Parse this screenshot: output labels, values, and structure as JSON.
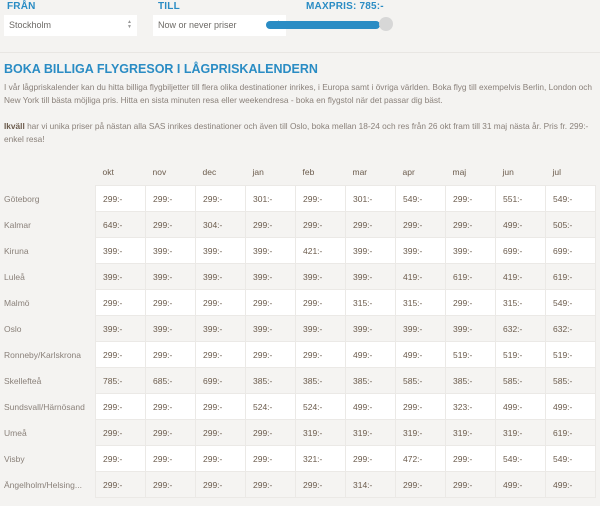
{
  "filters": {
    "from_label": "FRÅN",
    "from_value": "Stockholm",
    "to_label": "TILL",
    "to_value": "Now or never priser",
    "maxprice_label": "MAXPRIS: 785:-",
    "maxprice_fraction": 1.0,
    "accent": "#2a8cc4"
  },
  "heading": "BOKA BILLIGA FLYGRESOR I LÅGPRISKALENDERN",
  "intro": "I vår lågpriskalender kan du hitta billiga flygbiljetter till flera olika destinationer inrikes, i Europa samt i övriga världen. Boka flyg till exempelvis Berlin, London och New York till bästa möjliga pris. Hitta en sista minuten resa eller weekendresa - boka en flygstol när det passar dig bäst.",
  "offer_bold": "Ikväll",
  "offer_text": " har vi unika priser på nästan alla SAS inrikes destinationer och även till Oslo, boka mellan 18-24 och res från 26 okt fram till 31 maj nästa år. Pris fr. 299:- enkel resa!",
  "table": {
    "months": [
      "okt",
      "nov",
      "dec",
      "jan",
      "feb",
      "mar",
      "apr",
      "maj",
      "jun",
      "jul"
    ],
    "rows": [
      {
        "city": "Göteborg",
        "prices": [
          "299:-",
          "299:-",
          "299:-",
          "301:-",
          "299:-",
          "301:-",
          "549:-",
          "299:-",
          "551:-",
          "549:-"
        ]
      },
      {
        "city": "Kalmar",
        "prices": [
          "649:-",
          "299:-",
          "304:-",
          "299:-",
          "299:-",
          "299:-",
          "299:-",
          "299:-",
          "499:-",
          "505:-"
        ]
      },
      {
        "city": "Kiruna",
        "prices": [
          "399:-",
          "399:-",
          "399:-",
          "399:-",
          "421:-",
          "399:-",
          "399:-",
          "399:-",
          "699:-",
          "699:-"
        ]
      },
      {
        "city": "Luleå",
        "prices": [
          "399:-",
          "399:-",
          "399:-",
          "399:-",
          "399:-",
          "399:-",
          "419:-",
          "619:-",
          "419:-",
          "619:-"
        ]
      },
      {
        "city": "Malmö",
        "prices": [
          "299:-",
          "299:-",
          "299:-",
          "299:-",
          "299:-",
          "315:-",
          "315:-",
          "299:-",
          "315:-",
          "549:-"
        ]
      },
      {
        "city": "Oslo",
        "prices": [
          "399:-",
          "399:-",
          "399:-",
          "399:-",
          "399:-",
          "399:-",
          "399:-",
          "399:-",
          "632:-",
          "632:-"
        ]
      },
      {
        "city": "Ronneby/Karlskrona",
        "prices": [
          "299:-",
          "299:-",
          "299:-",
          "299:-",
          "299:-",
          "499:-",
          "499:-",
          "519:-",
          "519:-",
          "519:-"
        ]
      },
      {
        "city": "Skellefteå",
        "prices": [
          "785:-",
          "685:-",
          "699:-",
          "385:-",
          "385:-",
          "385:-",
          "585:-",
          "385:-",
          "585:-",
          "585:-"
        ]
      },
      {
        "city": "Sundsvall/Härnösand",
        "prices": [
          "299:-",
          "299:-",
          "299:-",
          "524:-",
          "524:-",
          "499:-",
          "299:-",
          "323:-",
          "499:-",
          "499:-"
        ]
      },
      {
        "city": "Umeå",
        "prices": [
          "299:-",
          "299:-",
          "299:-",
          "299:-",
          "319:-",
          "319:-",
          "319:-",
          "319:-",
          "319:-",
          "619:-"
        ]
      },
      {
        "city": "Visby",
        "prices": [
          "299:-",
          "299:-",
          "299:-",
          "299:-",
          "321:-",
          "299:-",
          "472:-",
          "299:-",
          "549:-",
          "549:-"
        ]
      },
      {
        "city": "Ängelholm/Helsing...",
        "prices": [
          "299:-",
          "299:-",
          "299:-",
          "299:-",
          "299:-",
          "314:-",
          "299:-",
          "299:-",
          "499:-",
          "499:-"
        ]
      }
    ]
  }
}
